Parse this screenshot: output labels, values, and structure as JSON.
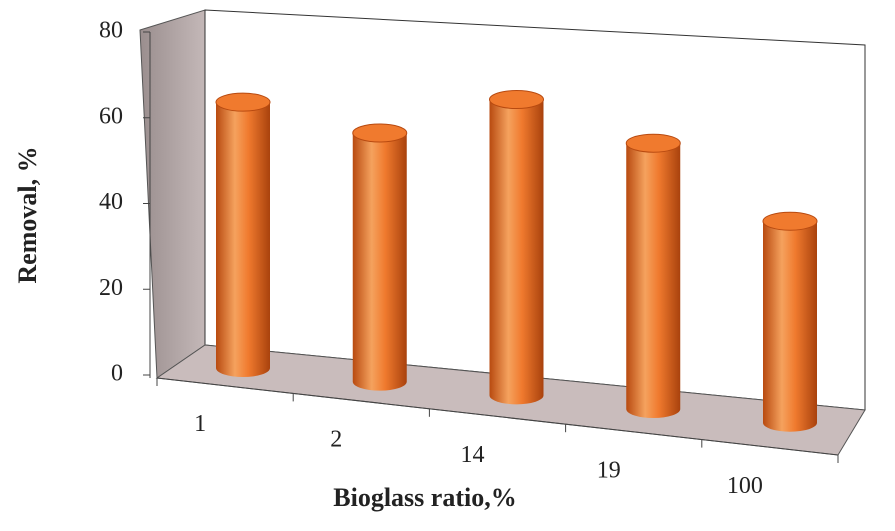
{
  "chart_data": {
    "type": "bar",
    "categories": [
      "1",
      "2",
      "14",
      "19",
      "100"
    ],
    "values": [
      62,
      58,
      69,
      62,
      47
    ],
    "color": "#f07a2e",
    "xlabel": "Bioglass ratio,%",
    "ylabel": "Removal, %",
    "ylim": [
      0,
      80
    ],
    "yticks": [
      0,
      20,
      40,
      60,
      80
    ]
  }
}
